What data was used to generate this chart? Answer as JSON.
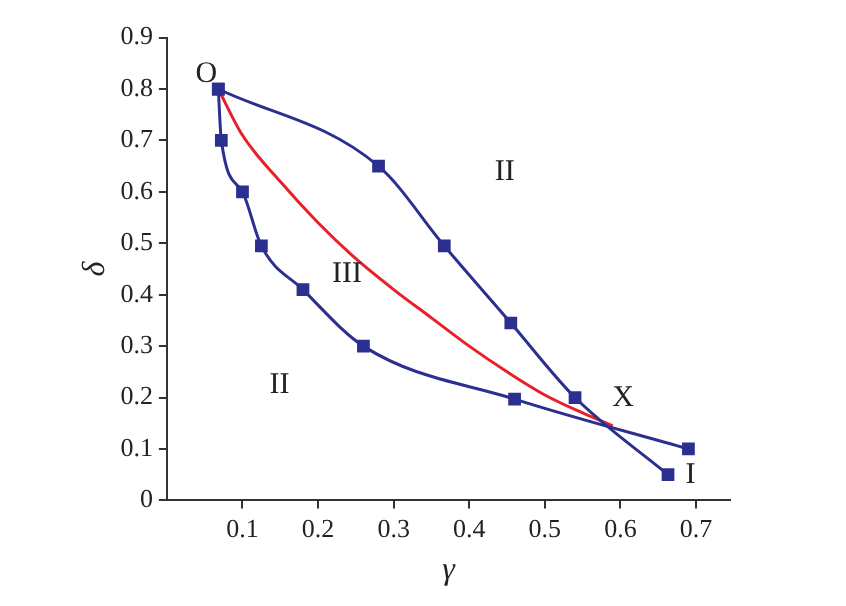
{
  "chart_data": {
    "type": "line",
    "xlabel": "γ",
    "ylabel": "δ",
    "xlim": [
      0,
      0.745
    ],
    "ylim": [
      0,
      0.9
    ],
    "xticks": [
      0.1,
      0.2,
      0.3,
      0.4,
      0.5,
      0.6,
      0.7
    ],
    "yticks": [
      0,
      0.1,
      0.2,
      0.3,
      0.4,
      0.5,
      0.6,
      0.7,
      0.8,
      0.9
    ],
    "grid": false,
    "legend": false,
    "line_style": "solid",
    "series": [
      {
        "color": "#2b2f8f",
        "marker": "square",
        "x": [
          0.068,
          0.28,
          0.367,
          0.455,
          0.54,
          0.663
        ],
        "values": [
          0.8,
          0.65,
          0.495,
          0.345,
          0.2,
          0.05
        ]
      },
      {
        "color": "#2b2f8f",
        "marker": "square",
        "x": [
          0.068,
          0.072,
          0.1,
          0.125,
          0.18,
          0.26,
          0.46,
          0.69
        ],
        "values": [
          0.8,
          0.7,
          0.6,
          0.495,
          0.41,
          0.3,
          0.197,
          0.1
        ]
      },
      {
        "color": "#e8202a",
        "marker": "none",
        "x": [
          0.068,
          0.1,
          0.15,
          0.2,
          0.25,
          0.3,
          0.35,
          0.4,
          0.45,
          0.5,
          0.55,
          0.59
        ],
        "values": [
          0.8,
          0.71,
          0.62,
          0.54,
          0.47,
          0.41,
          0.355,
          0.3,
          0.25,
          0.205,
          0.17,
          0.145
        ]
      }
    ],
    "annotations": [
      "O",
      "II",
      "III",
      "II",
      "X",
      "I"
    ]
  }
}
